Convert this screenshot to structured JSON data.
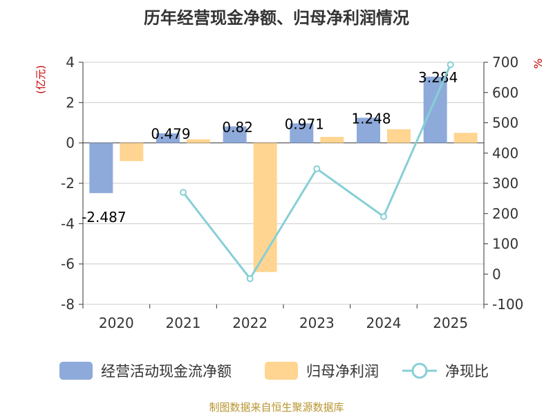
{
  "chart_data": {
    "type": "bar",
    "title": "历年经营现金净额、归母净利润情况",
    "source": "制图数据来自恒生聚源数据库",
    "categories": [
      "2020",
      "2021",
      "2022",
      "2023",
      "2024",
      "2025"
    ],
    "left_axis": {
      "unit": "(亿元)",
      "ylim": [
        -8,
        4
      ],
      "ticks": [
        "4",
        "2",
        "0",
        "-2",
        "-4",
        "-6",
        "-8"
      ]
    },
    "right_axis": {
      "unit": "%",
      "ylim": [
        -100,
        700
      ],
      "ticks": [
        "700",
        "600",
        "500",
        "400",
        "300",
        "200",
        "100",
        "0",
        "-100"
      ]
    },
    "series": [
      {
        "name": "经营活动现金流净额",
        "type": "bar",
        "axis": "left",
        "color": "#8eaadb",
        "values": [
          -2.487,
          0.479,
          0.82,
          0.971,
          1.248,
          3.284
        ],
        "labels": [
          "-2.487",
          "0.479",
          "0.82",
          "0.971",
          "1.248",
          "3.284"
        ]
      },
      {
        "name": "归母净利润",
        "type": "bar",
        "axis": "left",
        "color": "#ffd591",
        "values": [
          -0.9,
          0.18,
          -6.4,
          0.3,
          0.68,
          0.5
        ]
      },
      {
        "name": "净现比",
        "type": "line",
        "axis": "right",
        "color": "#86cfd6",
        "values": [
          null,
          270,
          -15,
          348,
          190,
          692
        ]
      }
    ],
    "legend_position": "bottom",
    "grid": true
  }
}
